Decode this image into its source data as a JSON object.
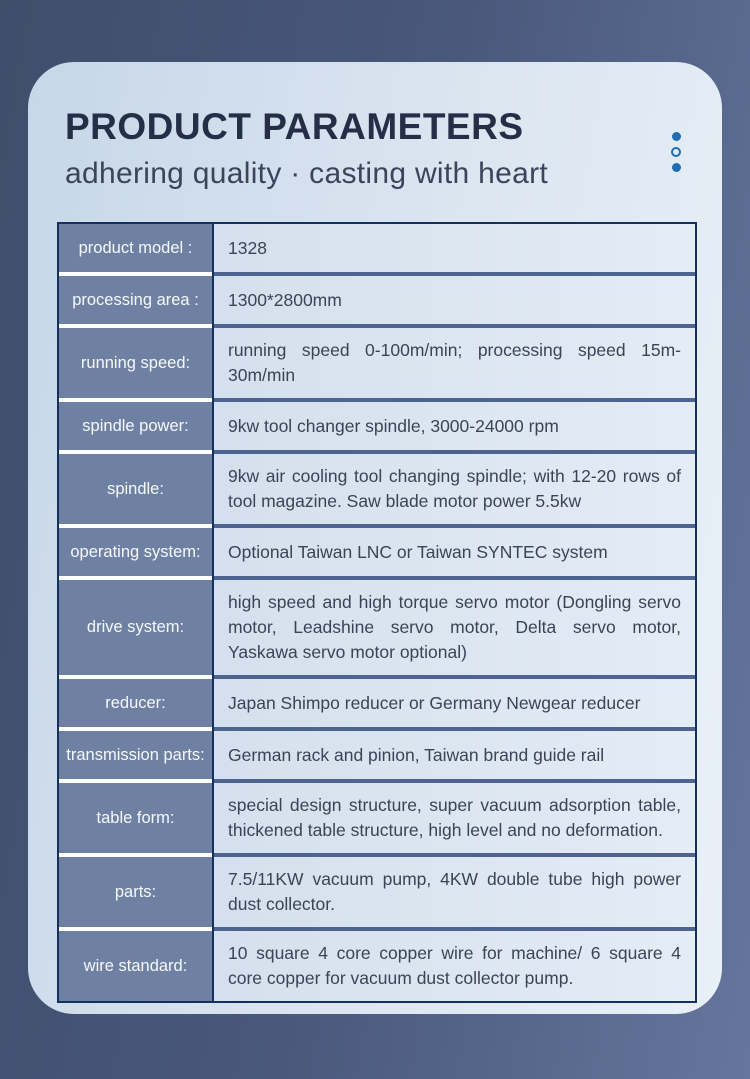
{
  "header": {
    "title": "PRODUCT PARAMETERS",
    "subtitle": "adhering quality · casting with heart"
  },
  "table": {
    "rows": [
      {
        "label": "product model :",
        "value": "1328"
      },
      {
        "label": "processing area :",
        "value": "1300*2800mm"
      },
      {
        "label": "running speed:",
        "value": "running speed 0-100m/min; processing speed 15m-30m/min"
      },
      {
        "label": "spindle power:",
        "value": "9kw tool changer spindle, 3000-24000 rpm"
      },
      {
        "label": "spindle:",
        "value": "9kw air cooling tool changing spindle; with 12-20 rows of tool magazine. Saw blade motor power 5.5kw"
      },
      {
        "label": "operating system:",
        "value": "Optional Taiwan LNC or Taiwan SYNTEC system"
      },
      {
        "label": "drive system:",
        "value": "high speed and high torque servo motor (Dongling servo motor, Leadshine servo motor, Delta servo motor, Yaskawa servo motor optional)"
      },
      {
        "label": "reducer:",
        "value": "Japan Shimpo reducer or Germany Newgear reducer"
      },
      {
        "label": "transmission parts:",
        "value": "German rack and pinion, Taiwan brand guide rail"
      },
      {
        "label": "table form:",
        "value": "special design structure, super vacuum adsorption table, thickened table structure, high level and no deformation."
      },
      {
        "label": "parts:",
        "value": "7.5/11KW vacuum pump, 4KW double tube high power dust collector."
      },
      {
        "label": "wire standard:",
        "value": "10 square 4 core copper wire for machine/ 6 square 4 core copper for vacuum dust collector pump."
      }
    ]
  },
  "colors": {
    "background_dark": "#3f4e6b",
    "background_light": "#65769d",
    "card_left": "#c7d7e8",
    "card_right": "#e9f0f7",
    "label_cell": "#6f81a3",
    "value_cell": "#dce6f1",
    "table_border": "#16305e",
    "row_separator": "#4d6390",
    "title_text": "#242e46",
    "subtitle_text": "#3a455b",
    "value_text": "#3b4456",
    "accent_blue": "#1f6cb5"
  }
}
